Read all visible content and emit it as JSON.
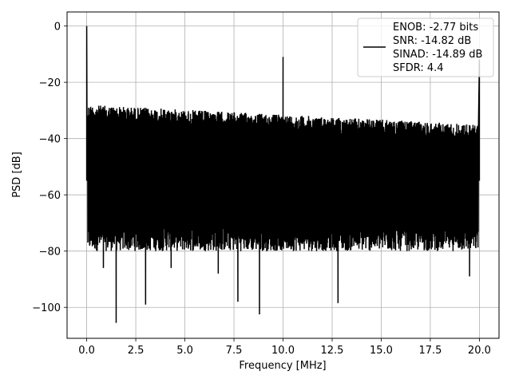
{
  "chart_data": {
    "type": "line",
    "xlabel": "Frequency [MHz]",
    "ylabel": "PSD [dB]",
    "xlim": [
      -1.0,
      21.0
    ],
    "ylim": [
      -111,
      5
    ],
    "grid": true,
    "legend_placement": "top-right",
    "line_color": "#000000",
    "x_ticks": [
      0.0,
      2.5,
      5.0,
      7.5,
      10.0,
      12.5,
      15.0,
      17.5,
      20.0
    ],
    "x_tick_labels": [
      "0.0",
      "2.5",
      "5.0",
      "7.5",
      "10.0",
      "12.5",
      "15.0",
      "17.5",
      "20.0"
    ],
    "y_ticks": [
      0,
      -20,
      -40,
      -60,
      -80,
      -100
    ],
    "y_tick_labels": [
      "0",
      "−20",
      "−40",
      "−60",
      "−80",
      "−100"
    ],
    "legend": {
      "series_label": [
        "ENOB: -2.77 bits",
        "SNR: -14.82 dB",
        "SINAD: -14.89 dB",
        "SFDR: 4.4"
      ]
    },
    "series": [
      {
        "spikes": [
          {
            "x": 0.0,
            "y": 0
          },
          {
            "x": 10.0,
            "y": -11
          },
          {
            "x": 20.0,
            "y": -12
          }
        ],
        "noise_floor": {
          "x_start": 0.05,
          "x_end": 19.95,
          "upper_start": -28,
          "upper_end": -35,
          "lower_typical": -75
        },
        "deep_dips": [
          {
            "x": 1.5,
            "y": -105.5
          },
          {
            "x": 3.0,
            "y": -99
          },
          {
            "x": 7.7,
            "y": -98
          },
          {
            "x": 8.8,
            "y": -102.5
          },
          {
            "x": 12.8,
            "y": -98.5
          },
          {
            "x": 0.85,
            "y": -86
          },
          {
            "x": 4.3,
            "y": -86
          },
          {
            "x": 6.7,
            "y": -88
          },
          {
            "x": 19.5,
            "y": -89
          }
        ]
      }
    ]
  }
}
